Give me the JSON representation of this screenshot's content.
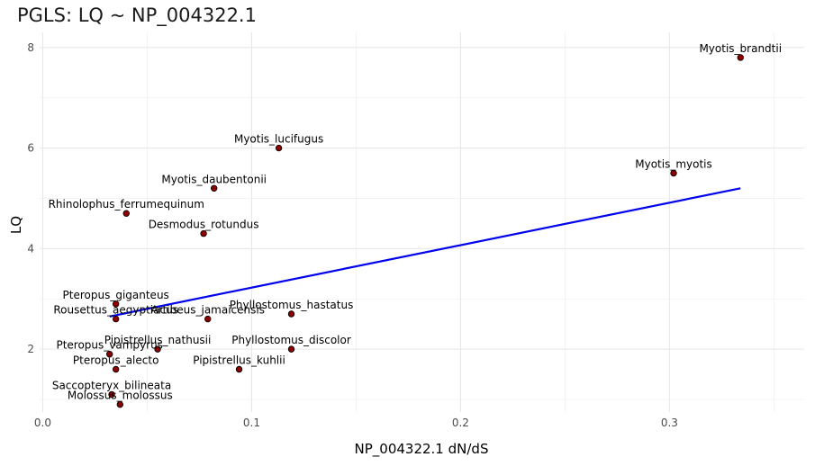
{
  "chart_data": {
    "type": "scatter",
    "title": "PGLS: LQ ~ NP_004322.1",
    "xlabel": "NP_004322.1 dN/dS",
    "ylabel": "LQ",
    "xlim": [
      -0.0015,
      0.3645
    ],
    "ylim": [
      0.75,
      8.3
    ],
    "x_ticks": [
      "0.0",
      "0.1",
      "0.2",
      "0.3"
    ],
    "x_tick_values": [
      0.0,
      0.1,
      0.2,
      0.3
    ],
    "y_ticks": [
      "2",
      "4",
      "6",
      "8"
    ],
    "y_tick_values": [
      2,
      4,
      6,
      8
    ],
    "grid": true,
    "point_color": "#8b0000",
    "line_color": "#0000ee",
    "points": [
      {
        "label": "Myotis_brandtii",
        "x": 0.334,
        "y": 7.8
      },
      {
        "label": "Myotis_lucifugus",
        "x": 0.113,
        "y": 6.0
      },
      {
        "label": "Myotis_myotis",
        "x": 0.302,
        "y": 5.5
      },
      {
        "label": "Myotis_daubentonii",
        "x": 0.082,
        "y": 5.2
      },
      {
        "label": "Rhinolophus_ferrumequinum",
        "x": 0.04,
        "y": 4.7
      },
      {
        "label": "Desmodus_rotundus",
        "x": 0.077,
        "y": 4.3
      },
      {
        "label": "Pteropus_giganteus",
        "x": 0.035,
        "y": 2.9
      },
      {
        "label": "Phyllostomus_hastatus",
        "x": 0.119,
        "y": 2.7
      },
      {
        "label": "Rousettus_aegyptiacus",
        "x": 0.035,
        "y": 2.6
      },
      {
        "label": "Artibeus_jamaicensis",
        "x": 0.079,
        "y": 2.6
      },
      {
        "label": "Pipistrellus_nathusii",
        "x": 0.055,
        "y": 2.0
      },
      {
        "label": "Phyllostomus_discolor",
        "x": 0.119,
        "y": 2.0
      },
      {
        "label": "Pteropus_vampyrus",
        "x": 0.032,
        "y": 1.9
      },
      {
        "label": "Pteropus_alecto",
        "x": 0.035,
        "y": 1.6
      },
      {
        "label": "Pipistrellus_kuhlii",
        "x": 0.094,
        "y": 1.6
      },
      {
        "label": "Saccopteryx_bilineata",
        "x": 0.033,
        "y": 1.1
      },
      {
        "label": "Molossus_molossus",
        "x": 0.037,
        "y": 0.9
      }
    ],
    "fit_line": {
      "x": [
        0.032,
        0.334
      ],
      "y": [
        2.65,
        5.2
      ]
    }
  }
}
